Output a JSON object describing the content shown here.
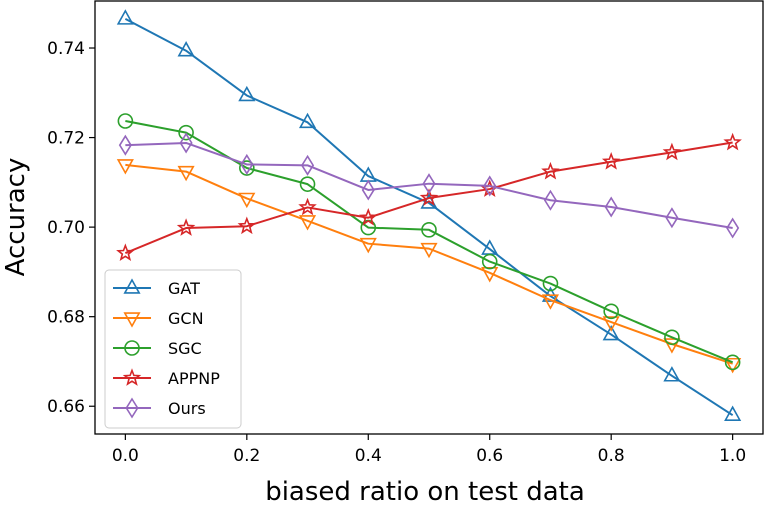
{
  "chart_data": {
    "type": "line",
    "title": "",
    "xlabel": "biased ratio on test data",
    "ylabel": "Accuracy",
    "xlim": [
      -0.05,
      1.05
    ],
    "ylim": [
      0.6538,
      0.7505
    ],
    "xticks": [
      0.0,
      0.2,
      0.4,
      0.6,
      0.8,
      1.0
    ],
    "xtick_labels": [
      "0.0",
      "0.2",
      "0.4",
      "0.6",
      "0.8",
      "1.0"
    ],
    "yticks": [
      0.66,
      0.68,
      0.7,
      0.72,
      0.74
    ],
    "ytick_labels": [
      "0.66",
      "0.68",
      "0.70",
      "0.72",
      "0.74"
    ],
    "grid": false,
    "legend_position": "lower-left",
    "x": [
      0.0,
      0.1,
      0.2,
      0.3,
      0.4,
      0.5,
      0.6,
      0.7,
      0.8,
      0.9,
      1.0
    ],
    "series": [
      {
        "name": "GAT",
        "color": "#1f77b4",
        "marker": "triangle-up",
        "values": [
          0.7465,
          0.7394,
          0.7294,
          0.7234,
          0.7114,
          0.7054,
          0.6951,
          0.6846,
          0.676,
          0.6668,
          0.658
        ]
      },
      {
        "name": "GCN",
        "color": "#ff7f0e",
        "marker": "triangle-down",
        "values": [
          0.7139,
          0.7124,
          0.7064,
          0.7014,
          0.6963,
          0.6952,
          0.6898,
          0.6837,
          0.6788,
          0.6739,
          0.6695
        ]
      },
      {
        "name": "SGC",
        "color": "#2ca02c",
        "marker": "circle",
        "values": [
          0.7237,
          0.7211,
          0.7132,
          0.7096,
          0.6999,
          0.6994,
          0.6923,
          0.6874,
          0.6812,
          0.6754,
          0.6698
        ]
      },
      {
        "name": "APPNP",
        "color": "#d62728",
        "marker": "star",
        "values": [
          0.6942,
          0.6998,
          0.7002,
          0.7044,
          0.7021,
          0.7065,
          0.7085,
          0.7124,
          0.7146,
          0.7167,
          0.7189
        ]
      },
      {
        "name": "Ours",
        "color": "#9467bd",
        "marker": "diamond",
        "values": [
          0.7183,
          0.7188,
          0.714,
          0.7138,
          0.7083,
          0.7097,
          0.7092,
          0.706,
          0.7045,
          0.7021,
          0.6998
        ]
      }
    ]
  }
}
